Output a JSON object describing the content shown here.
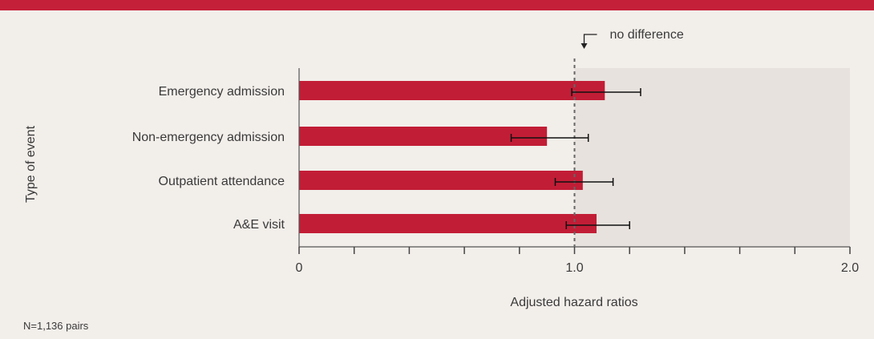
{
  "chart_data": {
    "type": "bar",
    "orientation": "horizontal",
    "title": "",
    "xlabel": "Adjusted hazard ratios",
    "ylabel": "Type of event",
    "xlim": [
      0,
      2.0
    ],
    "x_tick_labels": [
      "0",
      "1.0",
      "2.0"
    ],
    "categories": [
      "Emergency admission",
      "Non-emergency admission",
      "Outpatient attendance",
      "A&E visit"
    ],
    "values": [
      1.11,
      0.9,
      1.03,
      1.08
    ],
    "ci_lower": [
      0.99,
      0.77,
      0.93,
      0.97
    ],
    "ci_upper": [
      1.24,
      1.05,
      1.14,
      1.2
    ],
    "reference_line": {
      "x": 1.0,
      "label": "no difference"
    },
    "grid": false,
    "colors": {
      "bar": "#c21d36",
      "shade": "#e7e2dd",
      "background": "#f2eeea",
      "accent": "#c5203a"
    }
  },
  "footnote": "N=1,136 pairs"
}
